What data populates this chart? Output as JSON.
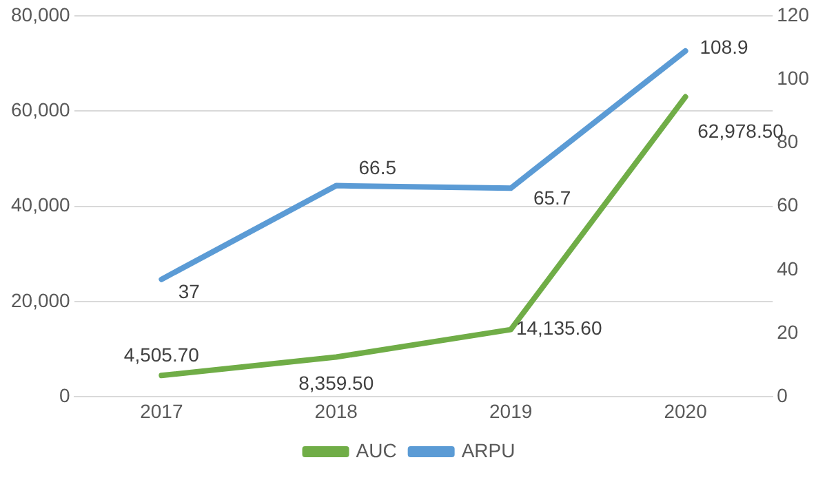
{
  "chart_data": {
    "type": "line",
    "categories": [
      "2017",
      "2018",
      "2019",
      "2020"
    ],
    "series": [
      {
        "name": "AUC",
        "color": "#70ad47",
        "values": [
          4505.7,
          8359.5,
          14135.6,
          62978.5
        ],
        "value_labels": [
          "4,505.70",
          "8,359.50",
          "14,135.60",
          "62,978.50"
        ]
      },
      {
        "name": "ARPU",
        "color": "#5b9bd5",
        "axis": "y2",
        "values": [
          37,
          66.5,
          65.7,
          108.9
        ],
        "value_labels": [
          "37",
          "66.5",
          "65.7",
          "108.9"
        ]
      }
    ],
    "ylim": [
      0,
      80000
    ],
    "yticks": [
      0,
      {
        "value": 20000,
        "label": "20,000"
      },
      {
        "value": 40000,
        "label": "40,000"
      },
      {
        "value": 60000,
        "label": "60,000"
      },
      {
        "value": 80000,
        "label": "80,000"
      }
    ],
    "y2lim": [
      0,
      120
    ],
    "y2ticks": [
      0,
      20,
      40,
      60,
      80,
      100,
      120
    ],
    "grid": "y",
    "legend": "bottom",
    "marker": "none",
    "line_style": "solid"
  }
}
